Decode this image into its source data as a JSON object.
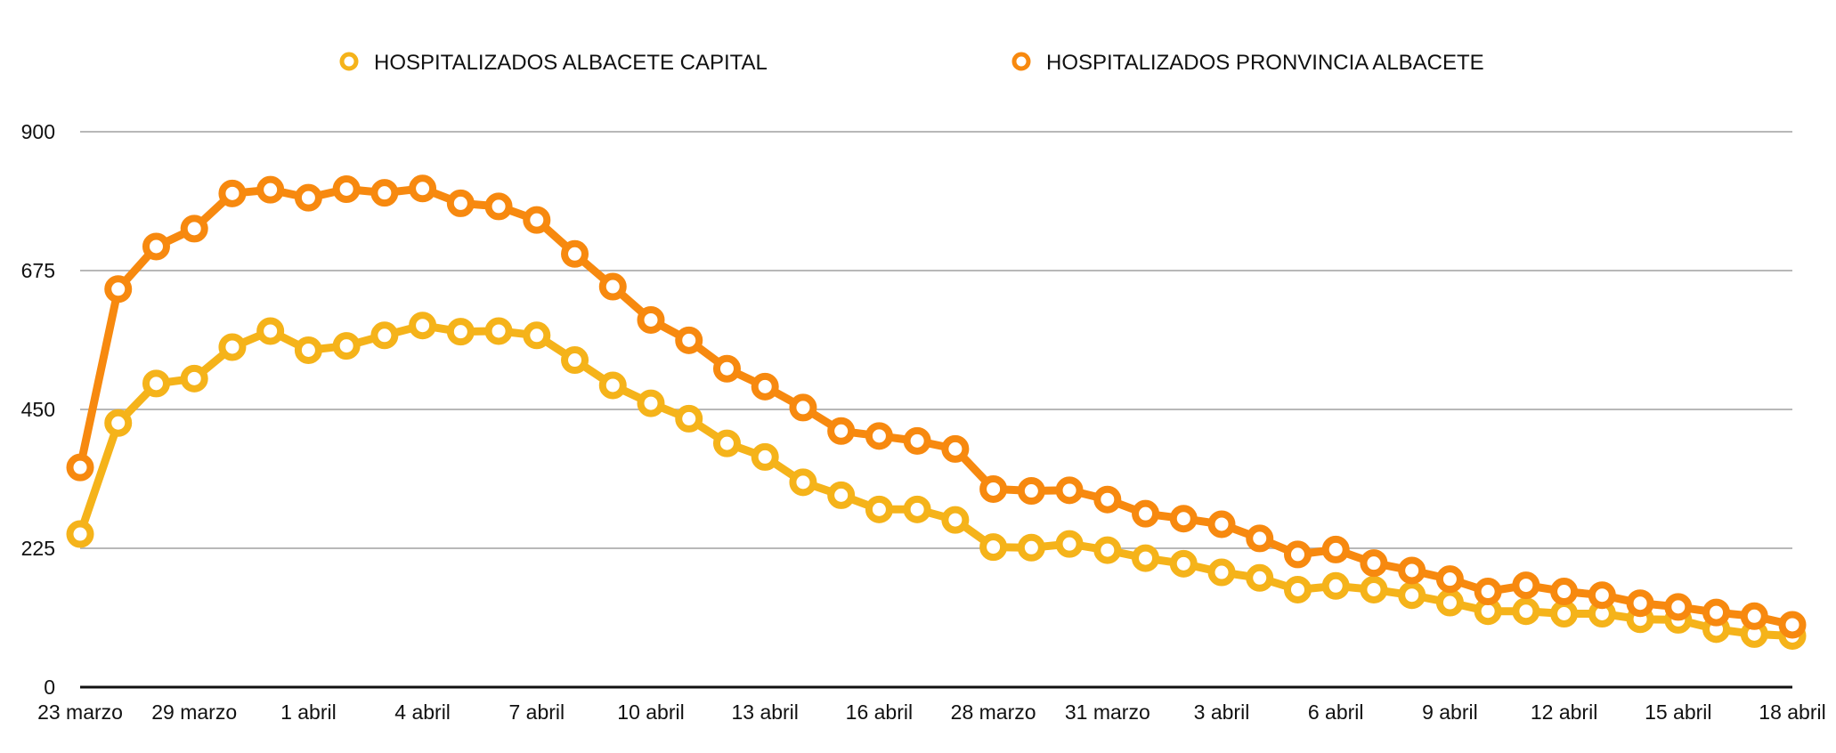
{
  "chart_data": {
    "type": "line",
    "title": "",
    "xlabel": "",
    "ylabel": "",
    "ylim": [
      0,
      900
    ],
    "yticks": [
      0,
      225,
      450,
      675,
      900
    ],
    "xtick_labels": [
      "23 marzo",
      "29 marzo",
      "1 abril",
      "4 abril",
      "7 abril",
      "10 abril",
      "13 abril",
      "16 abril",
      "28 marzo",
      "31 marzo",
      "3 abril",
      "6 abril",
      "9 abril",
      "12 abril",
      "15 abril",
      "18 abril"
    ],
    "grid": true,
    "legend_position": "top",
    "series": [
      {
        "name": "HOSPITALIZADOS ALBACETE CAPITAL",
        "color": "#F5B31A",
        "values": [
          248,
          428,
          492,
          500,
          551,
          577,
          546,
          553,
          570,
          586,
          576,
          577,
          570,
          530,
          489,
          460,
          435,
          395,
          373,
          332,
          311,
          288,
          288,
          271,
          227,
          226,
          232,
          222,
          209,
          200,
          186,
          177,
          158,
          164,
          158,
          149,
          137,
          123,
          123,
          119,
          119,
          110,
          109,
          94,
          86,
          83
        ]
      },
      {
        "name": "HOSPITALIZADOS PRONVINCIA ALBACETE",
        "color": "#F7890F",
        "values": [
          356,
          645,
          714,
          743,
          800,
          806,
          793,
          807,
          801,
          808,
          784,
          779,
          757,
          702,
          649,
          595,
          562,
          516,
          487,
          453,
          415,
          407,
          399,
          386,
          321,
          318,
          319,
          304,
          281,
          273,
          264,
          241,
          215,
          223,
          201,
          189,
          175,
          155,
          165,
          155,
          149,
          136,
          130,
          121,
          115,
          101
        ]
      }
    ]
  }
}
